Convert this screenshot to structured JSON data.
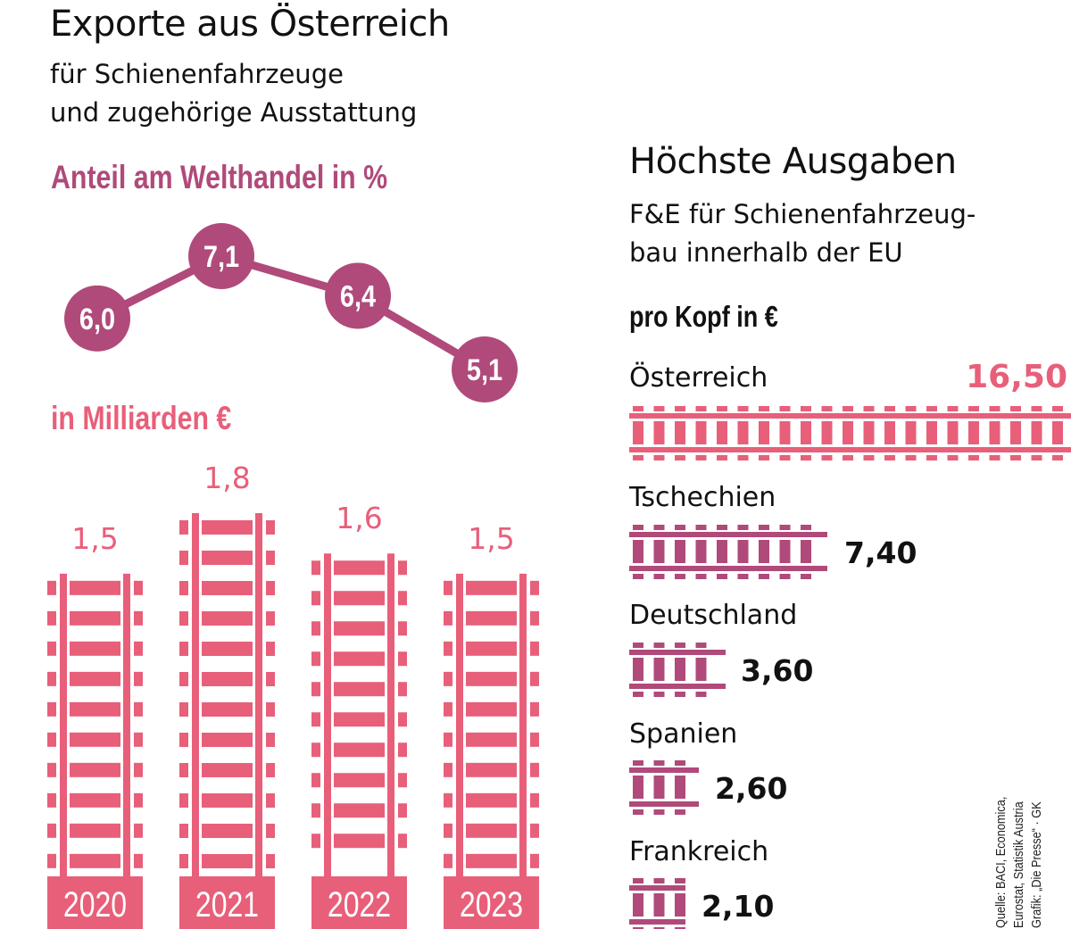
{
  "colors": {
    "pink": "#e85f7a",
    "plum": "#b04a7a",
    "text": "#111111"
  },
  "left": {
    "title": "Exporte aus Österreich",
    "subtitle_line1": "für Schienenfahrzeuge",
    "subtitle_line2": "und zugehörige Ausstattung",
    "share_label": "Anteil am Welthandel in %",
    "value_label": "in Milliarden €"
  },
  "right": {
    "title": "Höchste Ausgaben",
    "subtitle_line1": "F&E für Schienenfahrzeug-",
    "subtitle_line2": "bau innerhalb der EU",
    "unit_label": "pro Kopf in €"
  },
  "source": {
    "line1": "Quelle: BACI, Economica,",
    "line2": "Eurostat, Statistik Austria",
    "line3": "Grafik: „Die Presse“ · GK"
  },
  "chart_data": [
    {
      "type": "line",
      "title": "Anteil am Welthandel in %",
      "x": [
        "2020",
        "2021",
        "2022",
        "2023"
      ],
      "values": [
        6.0,
        7.1,
        6.4,
        5.1
      ],
      "labels": [
        "6,0",
        "7,1",
        "6,4",
        "5,1"
      ]
    },
    {
      "type": "bar",
      "title": "in Milliarden €",
      "categories": [
        "2020",
        "2021",
        "2022",
        "2023"
      ],
      "values": [
        1.5,
        1.8,
        1.6,
        1.5
      ],
      "labels": [
        "1,5",
        "1,8",
        "1,6",
        "1,5"
      ]
    },
    {
      "type": "bar",
      "orientation": "horizontal",
      "title": "Höchste Ausgaben",
      "subtitle": "F&E für Schienenfahrzeugbau innerhalb der EU",
      "unit": "pro Kopf in €",
      "categories": [
        "Österreich",
        "Tschechien",
        "Deutschland",
        "Spanien",
        "Frankreich"
      ],
      "values": [
        16.5,
        7.4,
        3.6,
        2.6,
        2.1
      ],
      "labels": [
        "16,50",
        "7,40",
        "3,60",
        "2,60",
        "2,10"
      ]
    }
  ]
}
